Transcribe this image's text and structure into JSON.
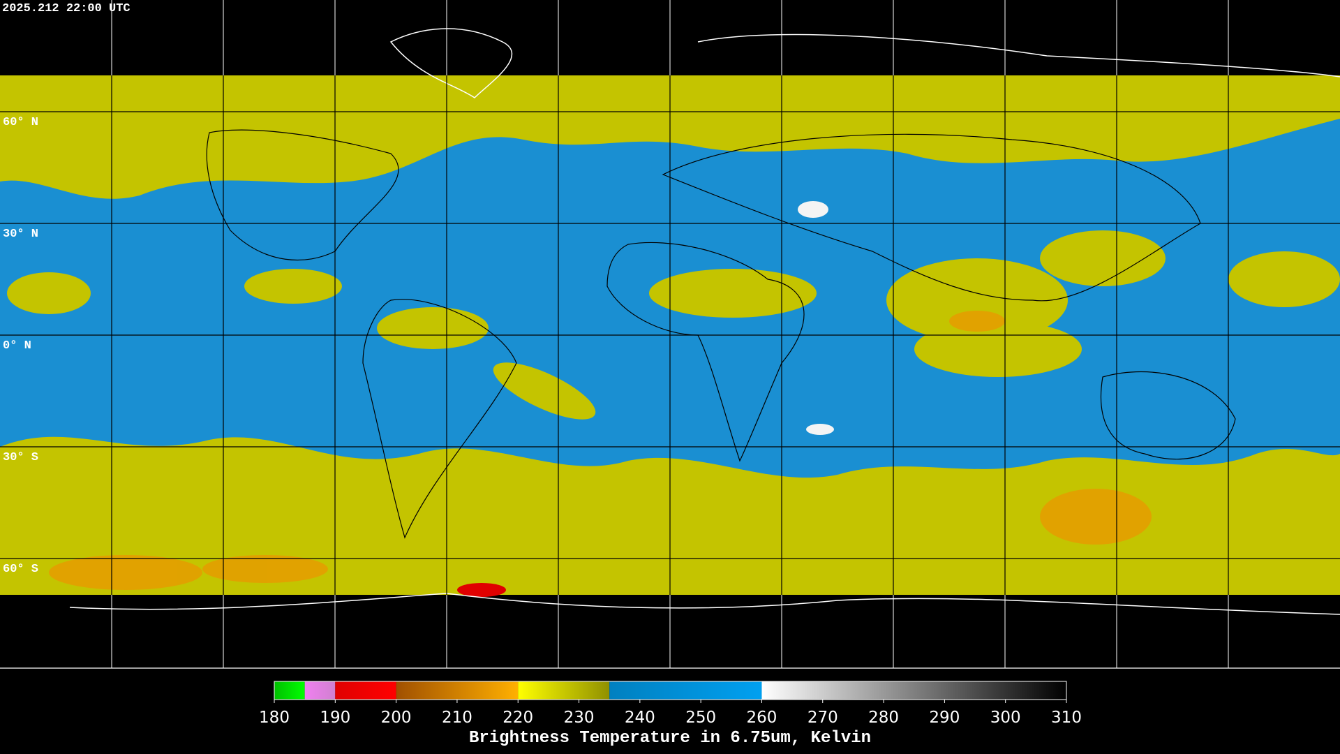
{
  "header": {
    "timestamp": "2025.212 22:00 UTC"
  },
  "map": {
    "latitude_labels": [
      "60° N",
      "30° N",
      "0° N",
      "30° S",
      "60° S"
    ]
  },
  "colorbar": {
    "range": [
      180,
      310
    ],
    "ticks": [
      180,
      190,
      200,
      210,
      220,
      230,
      240,
      250,
      260,
      270,
      280,
      290,
      300,
      310
    ],
    "label": "Brightness Temperature in 6.75um, Kelvin",
    "segments": [
      {
        "values": [
          180,
          185
        ],
        "colors": [
          "#00c000",
          "#00ff00"
        ]
      },
      {
        "values": [
          185,
          190
        ],
        "colors": [
          "#f080f0",
          "#d080d0"
        ]
      },
      {
        "values": [
          190,
          200
        ],
        "colors": [
          "#e00000",
          "#ff0000"
        ]
      },
      {
        "values": [
          200,
          220
        ],
        "colors": [
          "#a05000",
          "#ffb000"
        ]
      },
      {
        "values": [
          220,
          235
        ],
        "colors": [
          "#ffff00",
          "#909000"
        ]
      },
      {
        "values": [
          235,
          260
        ],
        "colors": [
          "#0080c0",
          "#00a0f0"
        ]
      },
      {
        "values": [
          260,
          310
        ],
        "colors": [
          "#ffffff",
          "#000000"
        ]
      }
    ]
  }
}
